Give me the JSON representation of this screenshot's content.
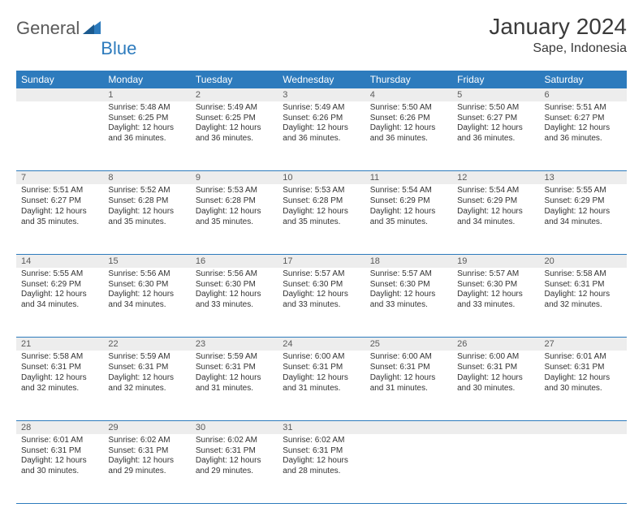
{
  "logo": {
    "text1": "General",
    "text2": "Blue",
    "color1": "#5a5a5a",
    "color2": "#2d7bbd"
  },
  "title": "January 2024",
  "location": "Sape, Indonesia",
  "header_bg": "#2d7bbd",
  "header_fg": "#ffffff",
  "daynum_bg": "#ededed",
  "row_border": "#2d7bbd",
  "day_names": [
    "Sunday",
    "Monday",
    "Tuesday",
    "Wednesday",
    "Thursday",
    "Friday",
    "Saturday"
  ],
  "weeks": [
    [
      null,
      {
        "n": "1",
        "sr": "5:48 AM",
        "ss": "6:25 PM",
        "dl": "12 hours and 36 minutes."
      },
      {
        "n": "2",
        "sr": "5:49 AM",
        "ss": "6:25 PM",
        "dl": "12 hours and 36 minutes."
      },
      {
        "n": "3",
        "sr": "5:49 AM",
        "ss": "6:26 PM",
        "dl": "12 hours and 36 minutes."
      },
      {
        "n": "4",
        "sr": "5:50 AM",
        "ss": "6:26 PM",
        "dl": "12 hours and 36 minutes."
      },
      {
        "n": "5",
        "sr": "5:50 AM",
        "ss": "6:27 PM",
        "dl": "12 hours and 36 minutes."
      },
      {
        "n": "6",
        "sr": "5:51 AM",
        "ss": "6:27 PM",
        "dl": "12 hours and 36 minutes."
      }
    ],
    [
      {
        "n": "7",
        "sr": "5:51 AM",
        "ss": "6:27 PM",
        "dl": "12 hours and 35 minutes."
      },
      {
        "n": "8",
        "sr": "5:52 AM",
        "ss": "6:28 PM",
        "dl": "12 hours and 35 minutes."
      },
      {
        "n": "9",
        "sr": "5:53 AM",
        "ss": "6:28 PM",
        "dl": "12 hours and 35 minutes."
      },
      {
        "n": "10",
        "sr": "5:53 AM",
        "ss": "6:28 PM",
        "dl": "12 hours and 35 minutes."
      },
      {
        "n": "11",
        "sr": "5:54 AM",
        "ss": "6:29 PM",
        "dl": "12 hours and 35 minutes."
      },
      {
        "n": "12",
        "sr": "5:54 AM",
        "ss": "6:29 PM",
        "dl": "12 hours and 34 minutes."
      },
      {
        "n": "13",
        "sr": "5:55 AM",
        "ss": "6:29 PM",
        "dl": "12 hours and 34 minutes."
      }
    ],
    [
      {
        "n": "14",
        "sr": "5:55 AM",
        "ss": "6:29 PM",
        "dl": "12 hours and 34 minutes."
      },
      {
        "n": "15",
        "sr": "5:56 AM",
        "ss": "6:30 PM",
        "dl": "12 hours and 34 minutes."
      },
      {
        "n": "16",
        "sr": "5:56 AM",
        "ss": "6:30 PM",
        "dl": "12 hours and 33 minutes."
      },
      {
        "n": "17",
        "sr": "5:57 AM",
        "ss": "6:30 PM",
        "dl": "12 hours and 33 minutes."
      },
      {
        "n": "18",
        "sr": "5:57 AM",
        "ss": "6:30 PM",
        "dl": "12 hours and 33 minutes."
      },
      {
        "n": "19",
        "sr": "5:57 AM",
        "ss": "6:30 PM",
        "dl": "12 hours and 33 minutes."
      },
      {
        "n": "20",
        "sr": "5:58 AM",
        "ss": "6:31 PM",
        "dl": "12 hours and 32 minutes."
      }
    ],
    [
      {
        "n": "21",
        "sr": "5:58 AM",
        "ss": "6:31 PM",
        "dl": "12 hours and 32 minutes."
      },
      {
        "n": "22",
        "sr": "5:59 AM",
        "ss": "6:31 PM",
        "dl": "12 hours and 32 minutes."
      },
      {
        "n": "23",
        "sr": "5:59 AM",
        "ss": "6:31 PM",
        "dl": "12 hours and 31 minutes."
      },
      {
        "n": "24",
        "sr": "6:00 AM",
        "ss": "6:31 PM",
        "dl": "12 hours and 31 minutes."
      },
      {
        "n": "25",
        "sr": "6:00 AM",
        "ss": "6:31 PM",
        "dl": "12 hours and 31 minutes."
      },
      {
        "n": "26",
        "sr": "6:00 AM",
        "ss": "6:31 PM",
        "dl": "12 hours and 30 minutes."
      },
      {
        "n": "27",
        "sr": "6:01 AM",
        "ss": "6:31 PM",
        "dl": "12 hours and 30 minutes."
      }
    ],
    [
      {
        "n": "28",
        "sr": "6:01 AM",
        "ss": "6:31 PM",
        "dl": "12 hours and 30 minutes."
      },
      {
        "n": "29",
        "sr": "6:02 AM",
        "ss": "6:31 PM",
        "dl": "12 hours and 29 minutes."
      },
      {
        "n": "30",
        "sr": "6:02 AM",
        "ss": "6:31 PM",
        "dl": "12 hours and 29 minutes."
      },
      {
        "n": "31",
        "sr": "6:02 AM",
        "ss": "6:31 PM",
        "dl": "12 hours and 28 minutes."
      },
      null,
      null,
      null
    ]
  ],
  "labels": {
    "sunrise": "Sunrise:",
    "sunset": "Sunset:",
    "daylight": "Daylight:"
  }
}
